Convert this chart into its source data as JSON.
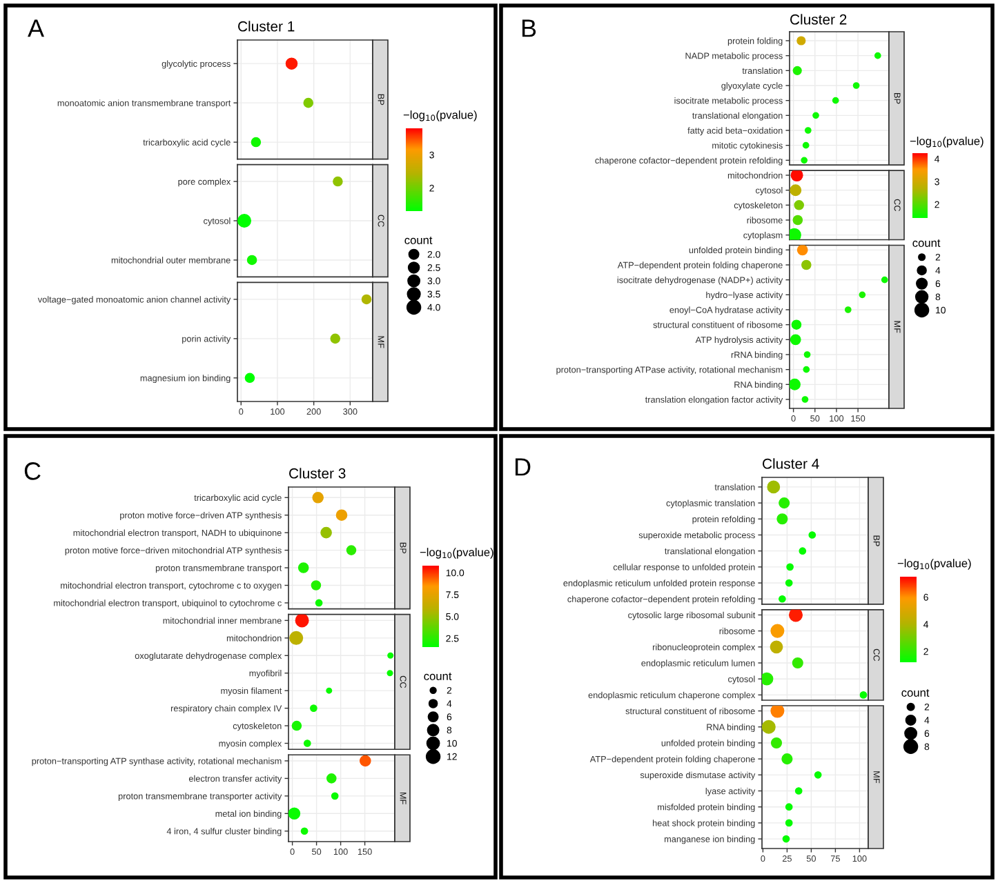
{
  "chart_data": [
    {
      "type": "bubble",
      "orientation": "horizontal",
      "title": "Cluster 1",
      "annotations": [
        "A",
        "BP",
        "CC",
        "MF"
      ],
      "categories": [
        "glycolytic process",
        "monoatomic anion transmembrane transport",
        "tricarboxylic acid cycle",
        "pore complex",
        "cytosol",
        "mitochondrial outer membrane",
        "voltage−gated monoatomic anion channel activity",
        "porin activity",
        "magnesium ion binding"
      ],
      "series": [
        {
          "values": [
            139,
            185,
            41,
            null,
            null,
            null,
            null,
            null,
            null
          ],
          "sizes": [
            3,
            2,
            2,
            null,
            null,
            null,
            null,
            null,
            null
          ],
          "cvalues": [
            3.7,
            2.1,
            1.4,
            null,
            null,
            null,
            null,
            null,
            null
          ],
          "colors": [
            "#ff1900",
            "#80ca00",
            "#10f800",
            null,
            null,
            null,
            null,
            null,
            null
          ]
        },
        {
          "values": [
            null,
            null,
            null,
            266,
            9,
            30,
            null,
            null,
            null
          ],
          "sizes": [
            null,
            null,
            null,
            2,
            4,
            2,
            null,
            null,
            null
          ],
          "cvalues": [
            null,
            null,
            null,
            2.2,
            1.3,
            1.4,
            null,
            null,
            null
          ],
          "colors": [
            null,
            null,
            null,
            "#90c300",
            "#00ff00",
            "#10f800",
            null,
            null,
            null
          ]
        },
        {
          "values": [
            null,
            null,
            null,
            null,
            null,
            null,
            345,
            259,
            24
          ],
          "sizes": [
            null,
            null,
            null,
            null,
            null,
            null,
            2,
            2,
            2
          ],
          "cvalues": [
            null,
            null,
            null,
            null,
            null,
            null,
            2.4,
            2.2,
            1.3
          ],
          "colors": [
            null,
            null,
            null,
            null,
            null,
            null,
            "#b0b600",
            "#90c300",
            "#00ff00"
          ]
        }
      ],
      "xlim": [
        -10,
        362
      ],
      "xticks": [
        0,
        100,
        200,
        300
      ],
      "grid": true,
      "clim": [
        1.3,
        3.8
      ],
      "cticks": [
        2,
        3
      ],
      "clabel": "−log$_{10}$(pvalue)",
      "legend_title": "count",
      "size_legend": [
        {
          "value": 2,
          "label": "2.0"
        },
        {
          "value": 2.5,
          "label": "2.5"
        },
        {
          "value": 3,
          "label": "3.0"
        },
        {
          "value": 3.5,
          "label": "3.5"
        },
        {
          "value": 4,
          "label": "4.0"
        }
      ]
    },
    {
      "type": "bubble",
      "orientation": "horizontal",
      "title": "Cluster 2",
      "annotations": [
        "B",
        "BP",
        "CC",
        "MF"
      ],
      "categories": [
        "protein folding",
        "NADP metabolic process",
        "translation",
        "glyoxylate cycle",
        "isocitrate metabolic process",
        "translational elongation",
        "fatty acid beta−oxidation",
        "mitotic cytokinesis",
        "chaperone cofactor−dependent protein refolding",
        "mitochondrion",
        "cytosol",
        "cytoskeleton",
        "ribosome",
        "cytoplasm",
        "unfolded protein binding",
        "ATP−dependent protein folding chaperone",
        "isocitrate dehydrogenase (NADP+) activity",
        "hydro−lyase activity",
        "enoyl−CoA hydratase activity",
        "structural constituent of ribosome",
        "ATP hydrolysis activity",
        "rRNA binding",
        "proton−transporting ATPase activity, rotational mechanism",
        "RNA binding",
        "translation elongation factor activity"
      ],
      "series": [
        {
          "values": [
            18,
            196,
            9,
            146,
            98,
            52,
            34,
            29,
            25,
            null,
            null,
            null,
            null,
            null,
            null,
            null,
            null,
            null,
            null,
            null,
            null,
            null,
            null,
            null,
            null
          ],
          "sizes": [
            4,
            2,
            4,
            2,
            2,
            2,
            2,
            2,
            2,
            null,
            null,
            null,
            null,
            null,
            null,
            null,
            null,
            null,
            null,
            null,
            null,
            null,
            null,
            null,
            null
          ],
          "cvalues": [
            3.0,
            1.5,
            1.6,
            1.5,
            1.5,
            1.5,
            1.5,
            1.5,
            1.5,
            null,
            null,
            null,
            null,
            null,
            null,
            null,
            null,
            null,
            null,
            null,
            null,
            null,
            null,
            null,
            null
          ],
          "colors": [
            "#d0aa00",
            "#0ef900",
            "#1cf300",
            "#0ef900",
            "#0ef900",
            "#0ef900",
            "#0ef900",
            "#0ef900",
            "#0ef900",
            null,
            null,
            null,
            null,
            null,
            null,
            null,
            null,
            null,
            null,
            null,
            null,
            null,
            null,
            null,
            null
          ]
        },
        {
          "values": [
            null,
            null,
            null,
            null,
            null,
            null,
            null,
            null,
            null,
            8,
            5,
            13,
            10,
            2,
            null,
            null,
            null,
            null,
            null,
            null,
            null,
            null,
            null,
            null,
            null
          ],
          "sizes": [
            null,
            null,
            null,
            null,
            null,
            null,
            null,
            null,
            null,
            8,
            7,
            5,
            5,
            10,
            null,
            null,
            null,
            null,
            null,
            null,
            null,
            null,
            null,
            null,
            null
          ],
          "cvalues": [
            null,
            null,
            null,
            null,
            null,
            null,
            null,
            null,
            null,
            4.2,
            2.8,
            2.3,
            2.0,
            1.5,
            null,
            null,
            null,
            null,
            null,
            null,
            null,
            null,
            null,
            null,
            null
          ],
          "colors": [
            null,
            null,
            null,
            null,
            null,
            null,
            null,
            null,
            null,
            "#ff0b00",
            "#beb000",
            "#7eca00",
            "#54dc00",
            "#0ef900",
            null,
            null,
            null,
            null,
            null,
            null,
            null,
            null,
            null,
            null,
            null
          ]
        },
        {
          "values": [
            null,
            null,
            null,
            null,
            null,
            null,
            null,
            null,
            null,
            null,
            null,
            null,
            null,
            null,
            21,
            30,
            212,
            160,
            127,
            7,
            5,
            32,
            30,
            3,
            27
          ],
          "sizes": [
            null,
            null,
            null,
            null,
            null,
            null,
            null,
            null,
            null,
            null,
            null,
            null,
            null,
            null,
            6,
            5,
            2,
            2,
            2,
            5,
            6,
            2,
            2,
            7,
            2
          ],
          "cvalues": [
            null,
            null,
            null,
            null,
            null,
            null,
            null,
            null,
            null,
            null,
            null,
            null,
            null,
            null,
            3.6,
            2.4,
            1.5,
            1.6,
            1.6,
            1.5,
            1.5,
            1.5,
            1.5,
            1.5,
            1.5
          ],
          "colors": [
            null,
            null,
            null,
            null,
            null,
            null,
            null,
            null,
            null,
            null,
            null,
            null,
            null,
            null,
            "#ff8c00",
            "#8cc400",
            "#0ef900",
            "#1cf300",
            "#1cf300",
            "#0ef900",
            "#0ef900",
            "#0ef900",
            "#0ef900",
            "#0ef900",
            "#0ef900"
          ]
        }
      ],
      "xlim": [
        -9,
        222
      ],
      "xticks": [
        0,
        50,
        100,
        150
      ],
      "grid": true,
      "clim": [
        1.4,
        4.25
      ],
      "cticks": [
        2,
        3,
        4
      ],
      "clabel": "−log$_{10}$(pvalue)",
      "legend_title": "count",
      "size_legend": [
        2,
        4,
        6,
        8,
        10
      ]
    },
    {
      "type": "bubble",
      "orientation": "horizontal",
      "title": "Cluster 3",
      "annotations": [
        "C",
        "BP",
        "CC",
        "MF"
      ],
      "categories": [
        "tricarboxylic acid cycle",
        "proton motive force−driven ATP synthesis",
        "mitochondrial electron transport, NADH to ubiquinone",
        "proton motive force−driven mitochondrial ATP synthesis",
        "proton transmembrane transport",
        "mitochondrial electron transport, cytochrome c to oxygen",
        "mitochondrial electron transport, ubiquinol to cytochrome c",
        "mitochondrial inner membrane",
        "mitochondrion",
        "oxoglutarate dehydrogenase complex",
        "myofibril",
        "myosin filament",
        "respiratory chain complex IV",
        "cytoskeleton",
        "myosin complex",
        "proton−transporting ATP synthase activity, rotational mechanism",
        "electron transfer activity",
        "proton transmembrane transporter activity",
        "metal ion binding",
        "4 iron, 4 sulfur cluster binding"
      ],
      "series": [
        {
          "values": [
            53,
            102,
            70,
            122,
            23,
            49,
            55,
            null,
            null,
            null,
            null,
            null,
            null,
            null,
            null,
            null,
            null,
            null,
            null,
            null
          ],
          "sizes": [
            8,
            8,
            8,
            6,
            7,
            6,
            3,
            null,
            null,
            null,
            null,
            null,
            null,
            null,
            null,
            null,
            null,
            null,
            null,
            null
          ],
          "cvalues": [
            7.5,
            7.8,
            5.0,
            2.5,
            2.2,
            2.3,
            1.8,
            null,
            null,
            null,
            null,
            null,
            null,
            null,
            null,
            null,
            null,
            null,
            null,
            null
          ],
          "colors": [
            "#e5a300",
            "#eda000",
            "#96c000",
            "#2bed00",
            "#1ef200",
            "#22f100",
            "#0dfa00",
            null,
            null,
            null,
            null,
            null,
            null,
            null,
            null,
            null,
            null,
            null,
            null,
            null
          ]
        },
        {
          "values": [
            null,
            null,
            null,
            null,
            null,
            null,
            null,
            20,
            8,
            203,
            202,
            76,
            44,
            9,
            31,
            null,
            null,
            null,
            null,
            null
          ],
          "sizes": [
            null,
            null,
            null,
            null,
            null,
            null,
            null,
            12,
            12,
            2,
            2,
            2,
            3,
            6,
            3,
            null,
            null,
            null,
            null,
            null
          ],
          "cvalues": [
            null,
            null,
            null,
            null,
            null,
            null,
            null,
            10.5,
            6.0,
            1.7,
            1.7,
            1.7,
            1.8,
            2.0,
            1.8,
            null,
            null,
            null,
            null,
            null
          ],
          "colors": [
            null,
            null,
            null,
            null,
            null,
            null,
            null,
            "#ff1400",
            "#bdb100",
            "#09fb00",
            "#09fb00",
            "#09fb00",
            "#0dfa00",
            "#16f600",
            "#0dfa00",
            null,
            null,
            null,
            null,
            null
          ]
        },
        {
          "values": [
            null,
            null,
            null,
            null,
            null,
            null,
            null,
            null,
            null,
            null,
            null,
            null,
            null,
            null,
            null,
            151,
            81,
            88,
            4,
            25
          ],
          "sizes": [
            null,
            null,
            null,
            null,
            null,
            null,
            null,
            null,
            null,
            null,
            null,
            null,
            null,
            null,
            null,
            8,
            6,
            3,
            9,
            3
          ],
          "cvalues": [
            null,
            null,
            null,
            null,
            null,
            null,
            null,
            null,
            null,
            null,
            null,
            null,
            null,
            null,
            null,
            9.5,
            2.2,
            1.7,
            1.7,
            1.8
          ],
          "colors": [
            null,
            null,
            null,
            null,
            null,
            null,
            null,
            null,
            null,
            null,
            null,
            null,
            null,
            null,
            null,
            "#ff5600",
            "#1ef200",
            "#09fb00",
            "#09fb00",
            "#0dfa00"
          ]
        }
      ],
      "xlim": [
        -8,
        212
      ],
      "xticks": [
        0,
        50,
        100,
        150
      ],
      "grid": true,
      "clim": [
        1.5,
        10.8
      ],
      "cticks": [
        {
          "value": 2.5,
          "label": "2.5"
        },
        {
          "value": 5,
          "label": "5.0"
        },
        {
          "value": 7.5,
          "label": "7.5"
        },
        {
          "value": 10,
          "label": "10.0"
        }
      ],
      "clabel": "−log$_{10}$(pvalue)",
      "legend_title": "count",
      "size_legend": [
        2,
        4,
        6,
        8,
        10,
        12
      ]
    },
    {
      "type": "bubble",
      "orientation": "horizontal",
      "title": "Cluster 4",
      "annotations": [
        "D",
        "BP",
        "CC",
        "MF"
      ],
      "categories": [
        "translation",
        "cytoplasmic translation",
        "protein refolding",
        "superoxide metabolic process",
        "translational elongation",
        "cellular response to unfolded protein",
        "endoplasmic reticulum unfolded protein response",
        "chaperone cofactor−dependent protein refolding",
        "cytosolic large ribosomal subunit",
        "ribosome",
        "ribonucleoprotein complex",
        "endoplasmic reticulum lumen",
        "cytosol",
        "endoplasmic reticulum chaperone complex",
        "structural constituent of ribosome",
        "RNA binding",
        "unfolded protein binding",
        "ATP−dependent protein folding chaperone",
        "superoxide dismutase activity",
        "lyase activity",
        "misfolded protein binding",
        "heat shock protein binding",
        "manganese ion binding"
      ],
      "series": [
        {
          "values": [
            11,
            22,
            20,
            51,
            41,
            28,
            27,
            20,
            null,
            null,
            null,
            null,
            null,
            null,
            null,
            null,
            null,
            null,
            null,
            null,
            null,
            null,
            null
          ],
          "sizes": [
            7,
            5,
            5,
            2,
            2,
            2,
            2,
            2,
            null,
            null,
            null,
            null,
            null,
            null,
            null,
            null,
            null,
            null,
            null,
            null,
            null,
            null,
            null
          ],
          "cvalues": [
            3.7,
            1.8,
            1.8,
            1.3,
            1.3,
            1.3,
            1.3,
            1.3,
            null,
            null,
            null,
            null,
            null,
            null,
            null,
            null,
            null,
            null,
            null,
            null,
            null,
            null,
            null
          ],
          "colors": [
            "#9fbd00",
            "#26ef00",
            "#26ef00",
            "#06fc00",
            "#06fc00",
            "#06fc00",
            "#06fc00",
            "#06fc00",
            null,
            null,
            null,
            null,
            null,
            null,
            null,
            null,
            null,
            null,
            null,
            null,
            null,
            null,
            null
          ]
        },
        {
          "values": [
            null,
            null,
            null,
            null,
            null,
            null,
            null,
            null,
            34,
            15,
            14,
            36,
            4,
            104,
            null,
            null,
            null,
            null,
            null,
            null,
            null,
            null,
            null
          ],
          "sizes": [
            null,
            null,
            null,
            null,
            null,
            null,
            null,
            null,
            8,
            8,
            7,
            5,
            7,
            2,
            null,
            null,
            null,
            null,
            null,
            null,
            null,
            null,
            null
          ],
          "cvalues": [
            null,
            null,
            null,
            null,
            null,
            null,
            null,
            null,
            7.2,
            5.8,
            4.3,
            2.0,
            1.8,
            1.3,
            null,
            null,
            null,
            null,
            null,
            null,
            null,
            null,
            null
          ],
          "colors": [
            null,
            null,
            null,
            null,
            null,
            null,
            null,
            null,
            "#ff1d00",
            "#fa9c00",
            "#bfb000",
            "#33ea00",
            "#26ef00",
            "#06fc00",
            null,
            null,
            null,
            null,
            null,
            null,
            null,
            null,
            null
          ]
        },
        {
          "values": [
            null,
            null,
            null,
            null,
            null,
            null,
            null,
            null,
            null,
            null,
            null,
            null,
            null,
            null,
            15,
            6,
            14,
            25,
            57,
            37,
            27,
            27,
            24
          ],
          "sizes": [
            null,
            null,
            null,
            null,
            null,
            null,
            null,
            null,
            null,
            null,
            null,
            null,
            null,
            null,
            8,
            8,
            5,
            5,
            2,
            2,
            2,
            2,
            2
          ],
          "cvalues": [
            null,
            null,
            null,
            null,
            null,
            null,
            null,
            null,
            null,
            null,
            null,
            null,
            null,
            null,
            6.2,
            3.8,
            2.0,
            1.8,
            1.3,
            1.3,
            1.3,
            1.3,
            1.3
          ],
          "colors": [
            null,
            null,
            null,
            null,
            null,
            null,
            null,
            null,
            null,
            null,
            null,
            null,
            null,
            null,
            "#ff7f00",
            "#a5ba00",
            "#33ea00",
            "#26ef00",
            "#06fc00",
            "#06fc00",
            "#06fc00",
            "#06fc00",
            "#06fc00"
          ]
        }
      ],
      "xlim": [
        -1,
        109
      ],
      "xticks": [
        0,
        25,
        50,
        75,
        100
      ],
      "grid": true,
      "clim": [
        1.2,
        7.5
      ],
      "cticks": [
        2,
        4,
        6
      ],
      "clabel": "−log$_{10}$(pvalue)",
      "legend_title": "count",
      "size_legend": [
        2,
        4,
        6,
        8
      ]
    }
  ]
}
